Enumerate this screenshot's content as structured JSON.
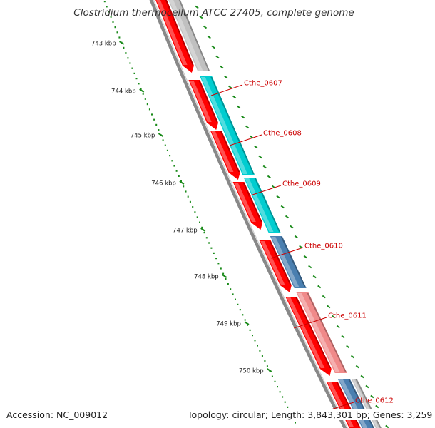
{
  "title": "Clostridium thermocellum ATCC 27405, complete genome",
  "footer": {
    "accession": "Accession: NC_009012",
    "topology": "Topology: circular; Length: 3,843,301 bp; Genes: 3,259"
  },
  "colors": {
    "forward_strand": "#ff0000",
    "reverse_gray": "#c0c0c0",
    "reverse_cyan": "#00cdd0",
    "reverse_blue": "#4a7fb0",
    "reverse_pink": "#f08a8a",
    "ruler_dots": "#1a8a1a",
    "backbone": "#888888",
    "label_red": "#cc0000"
  },
  "ruler": [
    {
      "label": "743 kbp"
    },
    {
      "label": "744 kbp"
    },
    {
      "label": "745 kbp"
    },
    {
      "label": "746 kbp"
    },
    {
      "label": "747 kbp"
    },
    {
      "label": "748 kbp"
    },
    {
      "label": "749 kbp"
    },
    {
      "label": "750 kbp"
    }
  ],
  "genes": [
    {
      "label": "Cthe_0607"
    },
    {
      "label": "Cthe_0608"
    },
    {
      "label": "Cthe_0609"
    },
    {
      "label": "Cthe_0610"
    },
    {
      "label": "Cthe_0611"
    },
    {
      "label": "Cthe_0612"
    }
  ]
}
